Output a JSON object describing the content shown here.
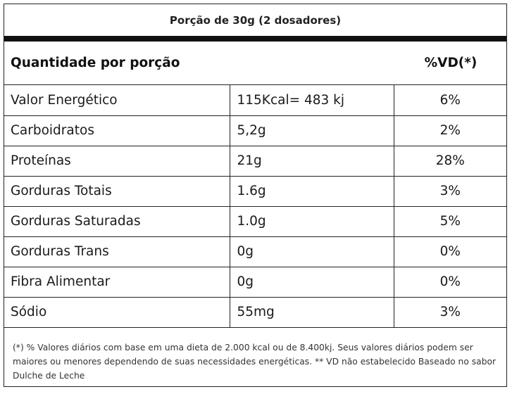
{
  "portion": "Porção de 30g (2 dosadores)",
  "header": {
    "left": "Quantidade por porção",
    "right": "%VD(*)"
  },
  "rows": [
    {
      "name": "Valor Energético",
      "amount": "115Kcal= 483 kj",
      "vd": "6%"
    },
    {
      "name": "Carboidratos",
      "amount": "5,2g",
      "vd": "2%"
    },
    {
      "name": "Proteínas",
      "amount": "21g",
      "vd": "28%"
    },
    {
      "name": "Gorduras Totais",
      "amount": "1.6g",
      "vd": "3%"
    },
    {
      "name": "Gorduras Saturadas",
      "amount": "1.0g",
      "vd": "5%"
    },
    {
      "name": "Gorduras Trans",
      "amount": "0g",
      "vd": "0%"
    },
    {
      "name": "Fibra Alimentar",
      "amount": "0g",
      "vd": "0%"
    },
    {
      "name": "Sódio",
      "amount": "55mg",
      "vd": "3%"
    }
  ],
  "footnote": "(*) % Valores diários com base em uma dieta de 2.000 kcal ou de 8.400kj. Seus valores diários podem ser maiores ou menores dependendo de suas necessidades energéticas. ** VD não estabelecido Baseado no sabor Dulche de Leche"
}
